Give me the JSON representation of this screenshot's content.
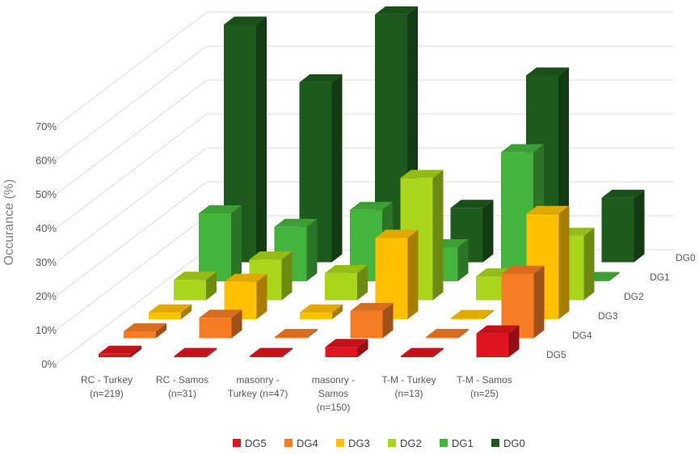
{
  "chart_data": {
    "type": "bar",
    "variant": "3d-column",
    "ylabel": "Occurance (%)",
    "ylim": [
      0,
      70
    ],
    "yticks": [
      "0%",
      "10%",
      "20%",
      "30%",
      "40%",
      "50%",
      "60%",
      "70%"
    ],
    "grid": true,
    "legend_position": "bottom",
    "categories": [
      [
        "RC - Turkey",
        "(n=219)"
      ],
      [
        "RC - Samos",
        "(n=31)"
      ],
      [
        "masonry -",
        "Turkey (n=47)"
      ],
      [
        "masonry -",
        "Samos",
        "(n=150)"
      ],
      [
        "T-M - Turkey",
        "(n=13)"
      ],
      [
        "T-M - Samos",
        "(n=25)"
      ]
    ],
    "series": [
      {
        "name": "DG5",
        "color": "#e0141e",
        "values": [
          1,
          0,
          0,
          3,
          0,
          7
        ]
      },
      {
        "name": "DG4",
        "color": "#f57c24",
        "values": [
          2,
          6,
          0,
          8,
          0,
          19
        ]
      },
      {
        "name": "DG3",
        "color": "#ffc000",
        "values": [
          2,
          11,
          2,
          24,
          0,
          31
        ]
      },
      {
        "name": "DG2",
        "color": "#a8d61a",
        "values": [
          6,
          12,
          8,
          36,
          7,
          19
        ]
      },
      {
        "name": "DG1",
        "color": "#44b43c",
        "values": [
          20,
          16,
          21,
          10,
          38,
          0
        ]
      },
      {
        "name": "DG0",
        "color": "#1d5a1d",
        "values": [
          70,
          53,
          73,
          16,
          55,
          19
        ]
      }
    ]
  }
}
